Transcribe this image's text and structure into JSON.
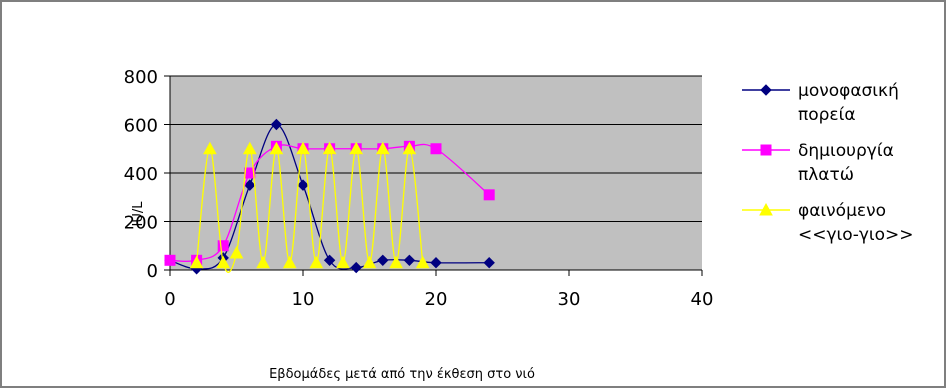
{
  "chart_data": {
    "type": "line",
    "title": "",
    "xlabel": "Εβδομάδες μετά από την έκθεση στο νιό",
    "ylabel": "IU/L",
    "xlim": [
      0,
      40
    ],
    "ylim": [
      0,
      800
    ],
    "xticks": [
      "0",
      "10",
      "20",
      "30",
      "40"
    ],
    "yticks": [
      "0",
      "200",
      "400",
      "600",
      "800"
    ],
    "grid": "horizontal",
    "legend_position": "right",
    "plot_background": "#c0c0c0",
    "series": [
      {
        "name": "μονοφασική πορεία",
        "name_lines": [
          "μονοφασική",
          "πορεία"
        ],
        "color": "#000080",
        "marker": "diamond",
        "smooth": true,
        "points": [
          [
            0,
            40
          ],
          [
            2,
            5
          ],
          [
            4,
            50
          ],
          [
            6,
            350
          ],
          [
            8,
            600
          ],
          [
            10,
            350
          ],
          [
            12,
            40
          ],
          [
            14,
            10
          ],
          [
            16,
            40
          ],
          [
            18,
            40
          ],
          [
            20,
            30
          ],
          [
            24,
            30
          ]
        ]
      },
      {
        "name": "δημιουργία πλατώ",
        "name_lines": [
          "δημιουργία",
          "πλατώ"
        ],
        "color": "#ff00ff",
        "marker": "square",
        "smooth": true,
        "points": [
          [
            0,
            40
          ],
          [
            2,
            40
          ],
          [
            4,
            100
          ],
          [
            6,
            400
          ],
          [
            8,
            510
          ],
          [
            10,
            500
          ],
          [
            12,
            500
          ],
          [
            14,
            500
          ],
          [
            16,
            500
          ],
          [
            18,
            510
          ],
          [
            20,
            500
          ],
          [
            24,
            310
          ]
        ]
      },
      {
        "name": "φαινόμενο <<γιο-γιο>>",
        "name_lines": [
          "φαινόμενο",
          "<<γιο-γιο>>"
        ],
        "color": "#ffff00",
        "marker": "triangle",
        "smooth": true,
        "points": [
          [
            2,
            30
          ],
          [
            3,
            500
          ],
          [
            4,
            30
          ],
          [
            5,
            70
          ],
          [
            6,
            500
          ],
          [
            7,
            30
          ],
          [
            8,
            500
          ],
          [
            9,
            30
          ],
          [
            10,
            500
          ],
          [
            11,
            30
          ],
          [
            12,
            500
          ],
          [
            13,
            30
          ],
          [
            14,
            500
          ],
          [
            15,
            30
          ],
          [
            16,
            500
          ],
          [
            17,
            30
          ],
          [
            18,
            500
          ],
          [
            19,
            30
          ]
        ]
      }
    ]
  }
}
